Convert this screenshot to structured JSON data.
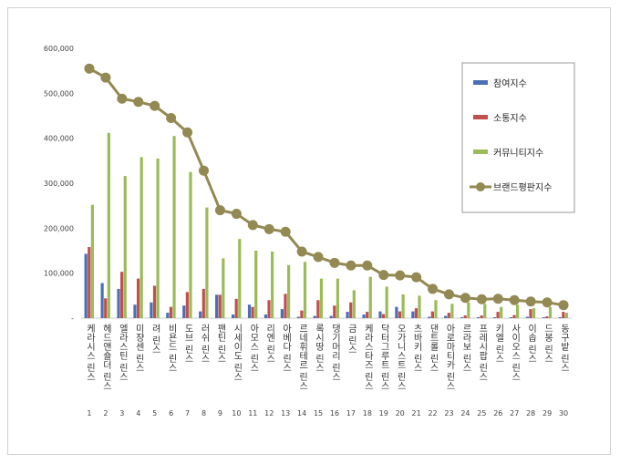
{
  "chart_data": {
    "type": "bar",
    "title": "",
    "xlabel": "",
    "ylabel": "",
    "ylim": [
      0,
      600000
    ],
    "y_ticks": [
      "-",
      "100,000",
      "200,000",
      "300,000",
      "400,000",
      "500,000",
      "600,000"
    ],
    "grid": false,
    "legend_position": "right",
    "categories": [
      "케라시스 린스",
      "헤드앤숄더 린스",
      "엘라스틴 린스",
      "미쟝센 린스",
      "려 린스",
      "비욘드 린스",
      "도브 린스",
      "러쉬 린스",
      "팬틴 린스",
      "시세이도 린스",
      "아모스 린스",
      "리엔 린스",
      "아베다 린스",
      "르네휘테르 린스",
      "록시땅 린스",
      "댕기머리 린스",
      "금 린스",
      "케라스타즈 린스",
      "닥터그루트 린스",
      "오가니스트 린스",
      "츠바키 린스",
      "댄트롤 린스",
      "아로마티카 린스",
      "르라보 린스",
      "프레시팝 린스",
      "키엘 린스",
      "사이오스 린스",
      "이솝 린스",
      "드봉 린스",
      "동구밭 린스"
    ],
    "ranks": [
      "1",
      "2",
      "3",
      "4",
      "5",
      "6",
      "7",
      "8",
      "9",
      "10",
      "11",
      "12",
      "13",
      "14",
      "15",
      "16",
      "17",
      "18",
      "19",
      "20",
      "21",
      "22",
      "23",
      "24",
      "25",
      "26",
      "27",
      "28",
      "29",
      "30"
    ],
    "series": [
      {
        "name": "참여지수",
        "kind": "bar",
        "color": "#4a6fb5",
        "values": [
          143000,
          78000,
          65000,
          30000,
          35000,
          12000,
          28000,
          15000,
          52000,
          8000,
          30000,
          8000,
          20000,
          3000,
          5000,
          5000,
          14000,
          8000,
          15000,
          25000,
          15000,
          3000,
          5000,
          2000,
          2000,
          2000,
          2000,
          3000,
          2000,
          2000
        ]
      },
      {
        "name": "소통지수",
        "kind": "bar",
        "color": "#c0504d",
        "values": [
          158000,
          44000,
          103000,
          88000,
          72000,
          25000,
          58000,
          65000,
          52000,
          43000,
          25000,
          40000,
          54000,
          17000,
          40000,
          28000,
          35000,
          14000,
          9000,
          15000,
          22000,
          15000,
          12000,
          6000,
          6000,
          14000,
          7000,
          20000,
          4000,
          14000
        ]
      },
      {
        "name": "커뮤니티지수",
        "kind": "bar",
        "color": "#9bbb59",
        "values": [
          252000,
          412000,
          316000,
          358000,
          355000,
          405000,
          325000,
          246000,
          133000,
          176000,
          150000,
          148000,
          118000,
          125000,
          88000,
          88000,
          62000,
          92000,
          70000,
          53000,
          50000,
          40000,
          32000,
          35000,
          32000,
          25000,
          30000,
          22000,
          25000,
          12000
        ]
      },
      {
        "name": "브랜드평판지수",
        "kind": "line",
        "color": "#938953",
        "values": [
          555000,
          535000,
          488000,
          481000,
          472000,
          445000,
          413000,
          328000,
          240000,
          232000,
          207000,
          198000,
          192000,
          148000,
          136000,
          123000,
          117000,
          117000,
          96000,
          95000,
          91000,
          65000,
          53000,
          45000,
          42000,
          43000,
          40000,
          37000,
          35000,
          29000
        ]
      }
    ]
  }
}
